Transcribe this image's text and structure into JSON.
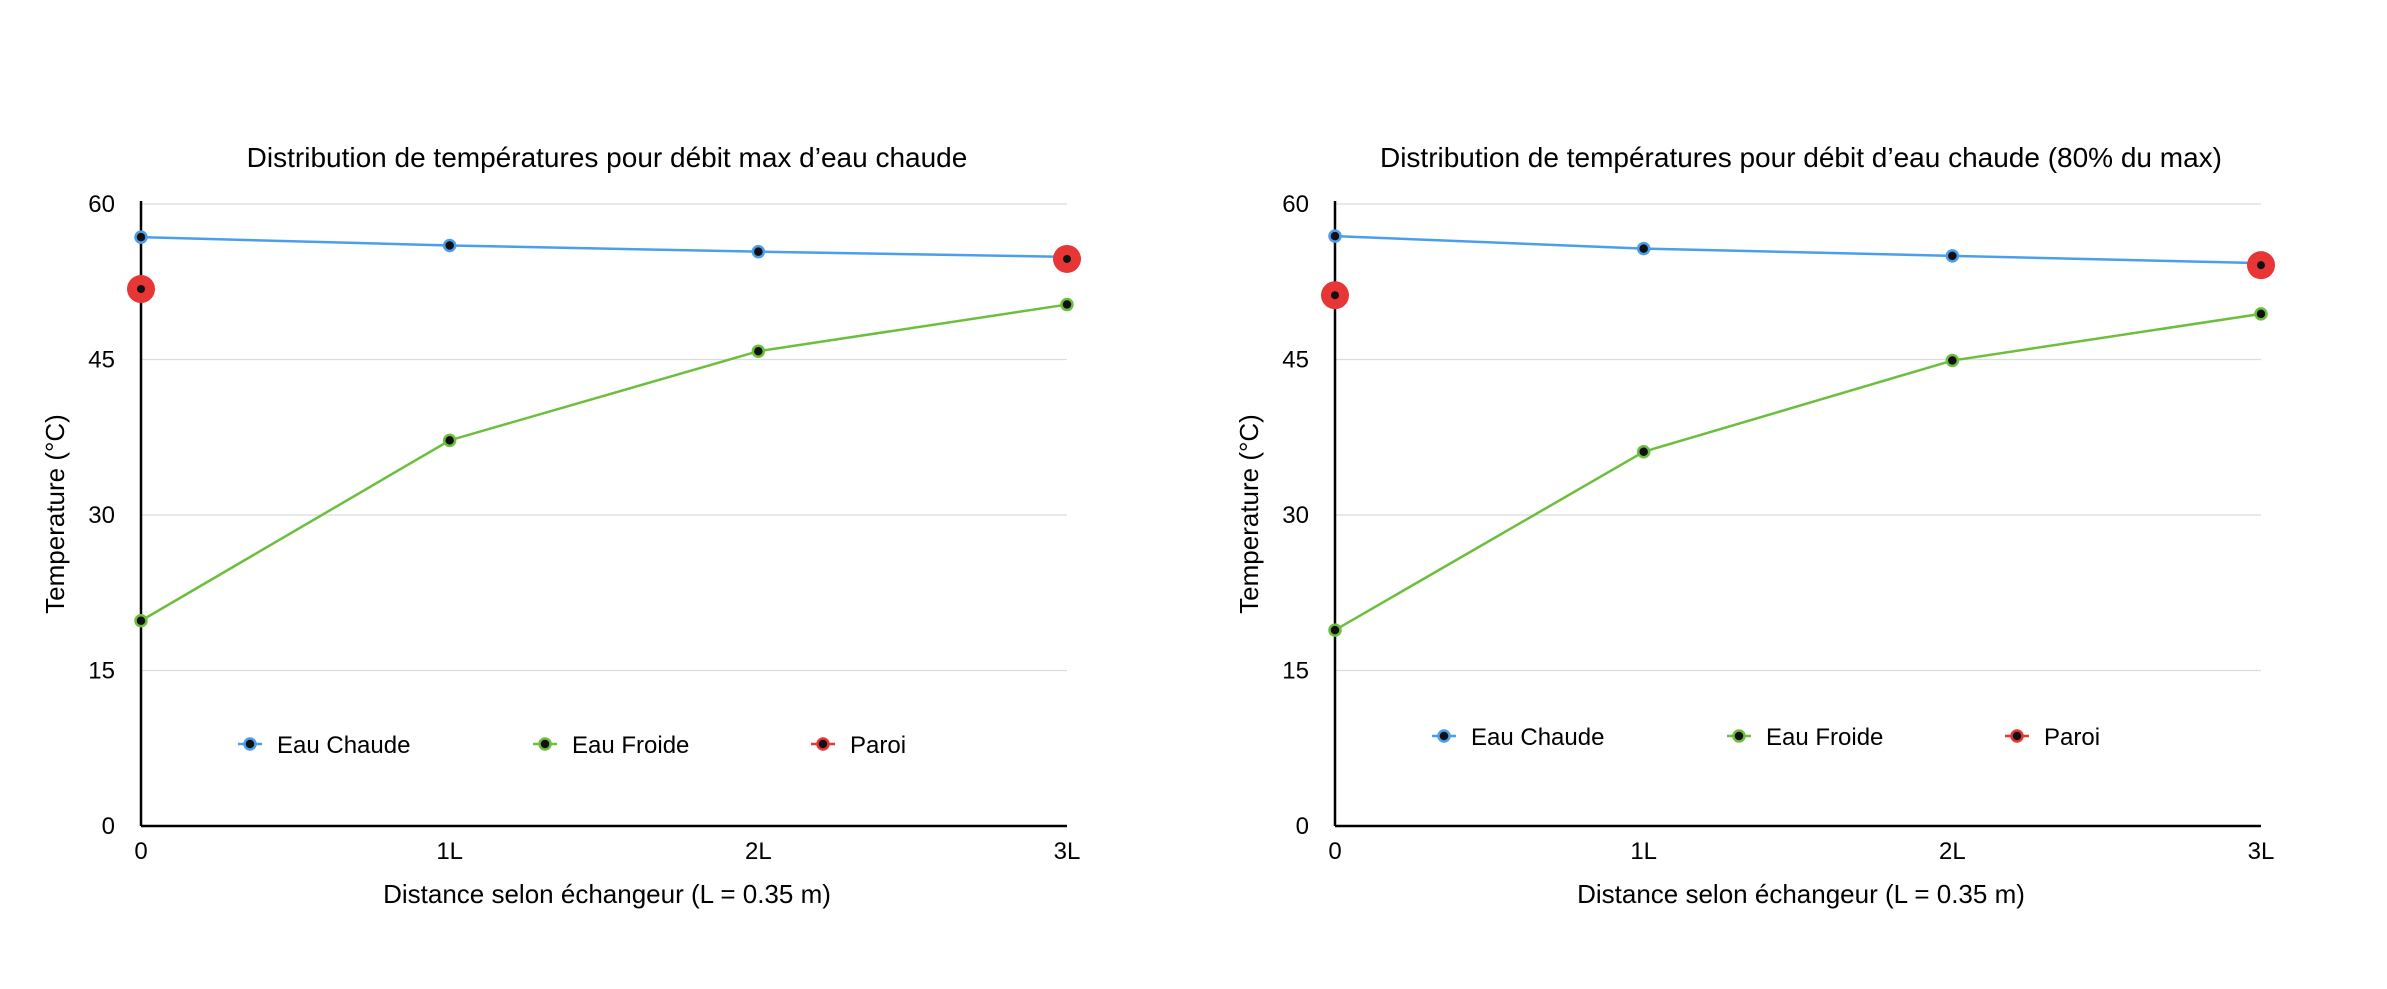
{
  "chart_data": [
    {
      "type": "line",
      "title": "Distribution de températures pour débit max d’eau chaude",
      "xlabel": "Distance selon échangeur (L = 0.35 m)",
      "ylabel": "Temperature (°C)",
      "categories": [
        "0",
        "1L",
        "2L",
        "3L"
      ],
      "yticks": [
        "0",
        "15",
        "30",
        "45",
        "60"
      ],
      "ylim": [
        0,
        60
      ],
      "grid": true,
      "legend": "bottom-left",
      "series": [
        {
          "name": "Eau Chaude",
          "color": "#4a9eed",
          "values": [
            56.8,
            56.0,
            55.4,
            54.9
          ]
        },
        {
          "name": "Eau Froide",
          "color": "#6cbf3c",
          "values": [
            19.8,
            37.2,
            45.8,
            50.3
          ]
        },
        {
          "name": "Paroi",
          "color": "#e83535",
          "values": [
            51.8,
            null,
            null,
            54.7
          ]
        }
      ]
    },
    {
      "type": "line",
      "title": "Distribution de températures pour débit d’eau chaude (80% du max)",
      "xlabel": "Distance selon échangeur (L = 0.35 m)",
      "ylabel": "Temperature (°C)",
      "categories": [
        "0",
        "1L",
        "2L",
        "3L"
      ],
      "yticks": [
        "0",
        "15",
        "30",
        "45",
        "60"
      ],
      "ylim": [
        0,
        60
      ],
      "grid": true,
      "legend": "bottom-left",
      "series": [
        {
          "name": "Eau Chaude",
          "color": "#4a9eed",
          "values": [
            56.9,
            55.7,
            55.0,
            54.3
          ]
        },
        {
          "name": "Eau Froide",
          "color": "#6cbf3c",
          "values": [
            18.9,
            36.1,
            44.9,
            49.4
          ]
        },
        {
          "name": "Paroi",
          "color": "#e83535",
          "values": [
            51.2,
            null,
            null,
            54.1
          ]
        }
      ]
    }
  ]
}
